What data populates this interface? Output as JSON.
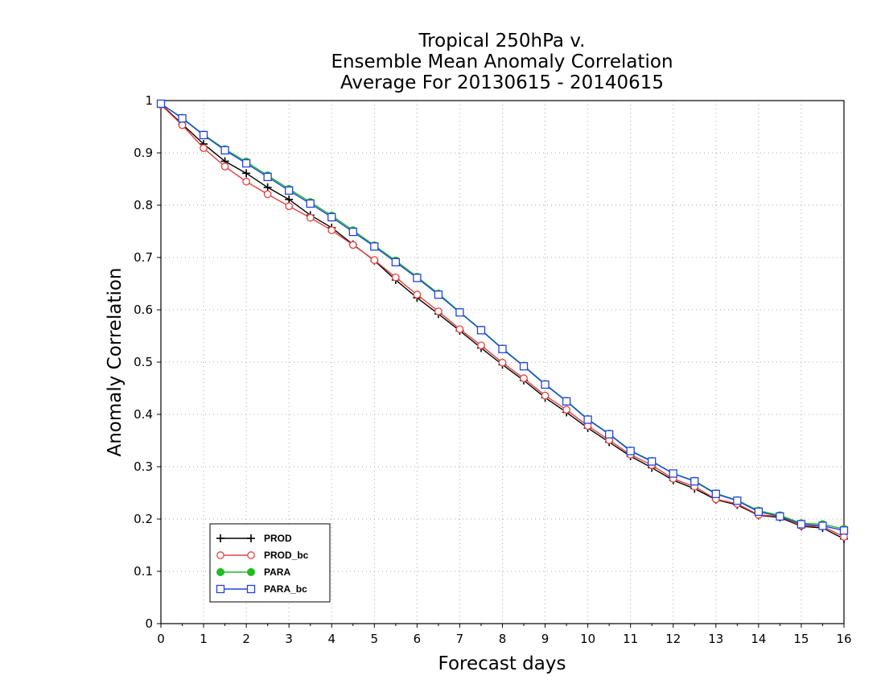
{
  "chart_data": {
    "type": "line",
    "title_lines": [
      "Tropical 250hPa v.",
      "Ensemble Mean Anomaly Correlation",
      "Average For 20130615 - 20140615"
    ],
    "xlabel": "Forecast days",
    "ylabel": "Anomaly Correlation",
    "xlim": [
      0,
      16
    ],
    "ylim": [
      0,
      1
    ],
    "xticks": [
      "0",
      "1",
      "2",
      "3",
      "4",
      "5",
      "6",
      "7",
      "8",
      "9",
      "10",
      "11",
      "12",
      "13",
      "14",
      "15",
      "16"
    ],
    "yticks": [
      "0",
      "0.1",
      "0.2",
      "0.3",
      "0.4",
      "0.5",
      "0.6",
      "0.7",
      "0.8",
      "0.9",
      "1"
    ],
    "grid": true,
    "legend_position": "bottom-left",
    "x": [
      0,
      0.5,
      1,
      1.5,
      2,
      2.5,
      3,
      3.5,
      4,
      4.5,
      5,
      5.5,
      6,
      6.5,
      7,
      7.5,
      8,
      8.5,
      9,
      9.5,
      10,
      10.5,
      11,
      11.5,
      12,
      12.5,
      13,
      13.5,
      14,
      14.5,
      15,
      15.5,
      16
    ],
    "series": [
      {
        "name": "PROD",
        "color": "#000000",
        "marker": "plus",
        "values": [
          0.993,
          0.955,
          0.917,
          0.884,
          0.861,
          0.834,
          0.811,
          0.781,
          0.757,
          0.725,
          0.694,
          0.657,
          0.623,
          0.592,
          0.56,
          0.527,
          0.495,
          0.465,
          0.432,
          0.404,
          0.374,
          0.347,
          0.32,
          0.298,
          0.274,
          0.258,
          0.237,
          0.227,
          0.207,
          0.203,
          0.186,
          0.183,
          0.162
        ]
      },
      {
        "name": "PROD_bc",
        "color": "#e84040",
        "marker": "circle",
        "values": [
          0.992,
          0.953,
          0.909,
          0.874,
          0.845,
          0.821,
          0.798,
          0.776,
          0.752,
          0.724,
          0.695,
          0.662,
          0.629,
          0.597,
          0.563,
          0.532,
          0.499,
          0.469,
          0.436,
          0.409,
          0.378,
          0.351,
          0.323,
          0.303,
          0.277,
          0.262,
          0.238,
          0.229,
          0.208,
          0.205,
          0.187,
          0.186,
          0.166
        ]
      },
      {
        "name": "PARA",
        "color": "#22bb22",
        "marker": "dot",
        "values": [
          0.994,
          0.967,
          0.935,
          0.907,
          0.883,
          0.857,
          0.831,
          0.806,
          0.78,
          0.752,
          0.723,
          0.694,
          0.663,
          0.631,
          0.596,
          0.562,
          0.526,
          0.493,
          0.458,
          0.426,
          0.391,
          0.363,
          0.331,
          0.311,
          0.287,
          0.273,
          0.249,
          0.236,
          0.216,
          0.207,
          0.192,
          0.19,
          0.181
        ]
      },
      {
        "name": "PARA_bc",
        "color": "#2244dd",
        "marker": "square",
        "values": [
          0.994,
          0.966,
          0.934,
          0.905,
          0.88,
          0.854,
          0.828,
          0.803,
          0.777,
          0.749,
          0.721,
          0.691,
          0.661,
          0.629,
          0.595,
          0.561,
          0.525,
          0.492,
          0.457,
          0.425,
          0.39,
          0.362,
          0.33,
          0.31,
          0.287,
          0.272,
          0.248,
          0.235,
          0.214,
          0.205,
          0.19,
          0.187,
          0.178
        ]
      }
    ]
  }
}
